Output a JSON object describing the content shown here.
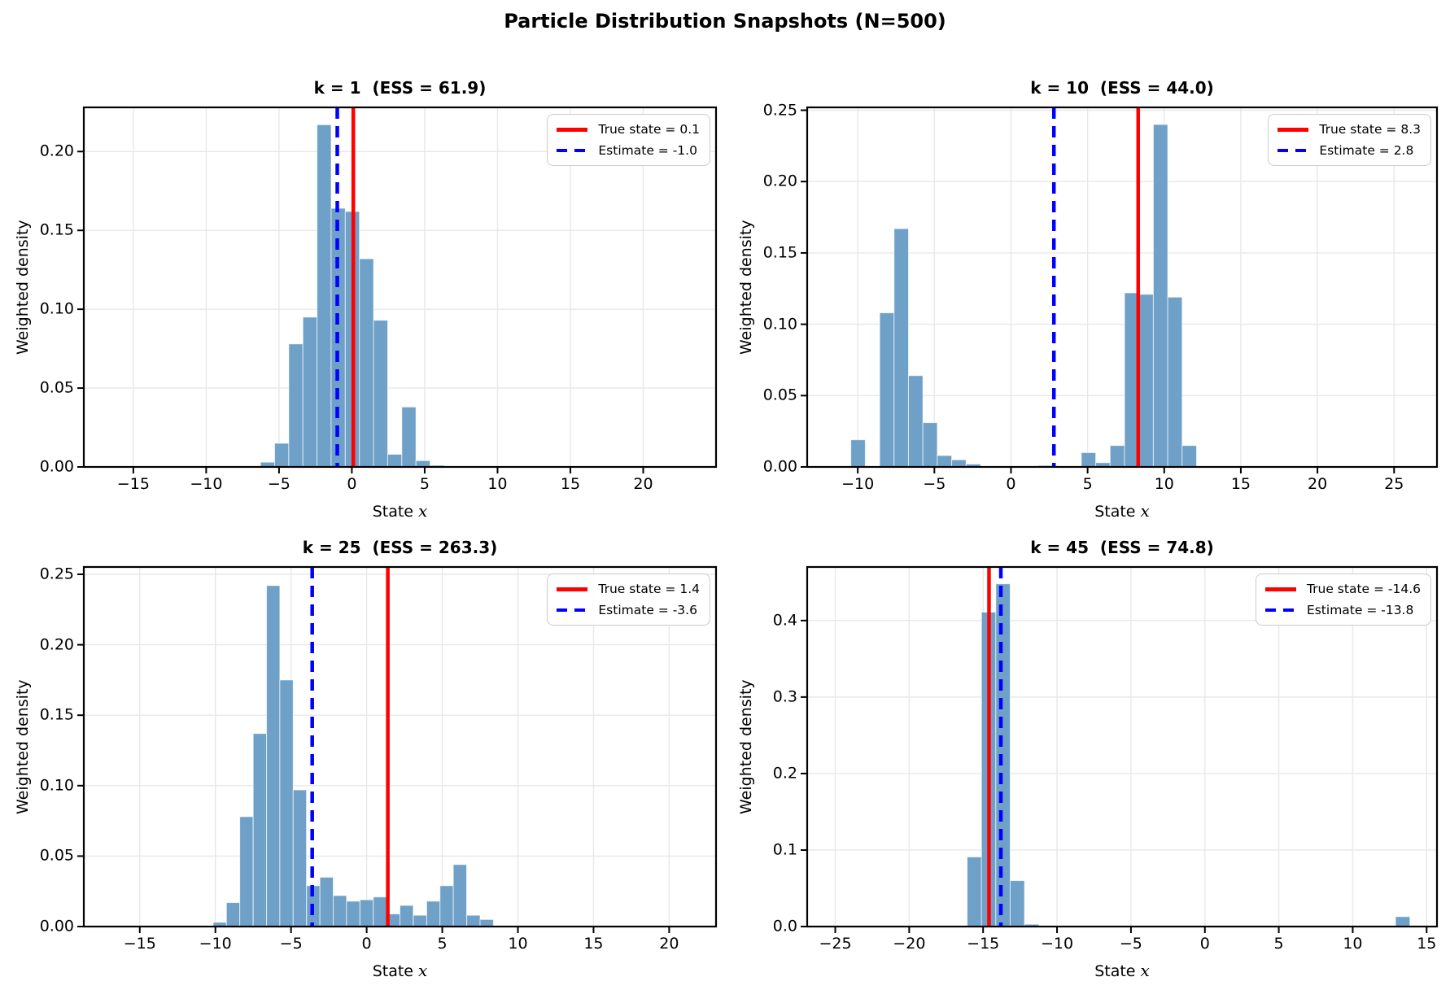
{
  "figure": {
    "title": "Particle Distribution Snapshots (N=500)",
    "particle_count": 500
  },
  "colors": {
    "bar_fill": "#6FA0C8",
    "bar_edge": "#FFFFFF",
    "true_state_line": "#FF0000",
    "estimate_line": "#0000FF",
    "grid": "#E8E8E8",
    "frame": "#000000",
    "legend_border": "#CCCCCC",
    "background": "#FFFFFF"
  },
  "chart_data": [
    {
      "type": "bar",
      "k": 1,
      "ess": 61.9,
      "title": "k = 1  (ESS = 61.9)",
      "xlabel_prefix": "State ",
      "xlabel_var": "x",
      "ylabel": "Weighted density",
      "xlim": [
        -18.4,
        25.0
      ],
      "ylim": [
        0,
        0.228
      ],
      "xticks": [
        -15,
        -10,
        -5,
        0,
        5,
        10,
        15,
        20
      ],
      "xtick_labels": [
        "−15",
        "−10",
        "−5",
        "0",
        "5",
        "10",
        "15",
        "20"
      ],
      "yticks": [
        0,
        0.05,
        0.1,
        0.15,
        0.2
      ],
      "ytick_labels": [
        "0.00",
        "0.05",
        "0.10",
        "0.15",
        "0.20"
      ],
      "bin_width": 0.97,
      "bins": [
        [
          -6.27,
          0.003
        ],
        [
          -5.3,
          0.015
        ],
        [
          -4.33,
          0.078
        ],
        [
          -3.36,
          0.095
        ],
        [
          -2.39,
          0.217
        ],
        [
          -1.42,
          0.164
        ],
        [
          -0.45,
          0.162
        ],
        [
          0.52,
          0.132
        ],
        [
          1.49,
          0.093
        ],
        [
          2.46,
          0.008
        ],
        [
          3.43,
          0.038
        ],
        [
          4.4,
          0.004
        ],
        [
          5.37,
          0.001
        ]
      ],
      "true_state": 0.1,
      "estimate": -1.0,
      "legend": [
        {
          "label": "True state = 0.1",
          "style": "solid"
        },
        {
          "label": "Estimate = -1.0",
          "style": "dashed"
        }
      ]
    },
    {
      "type": "bar",
      "k": 10,
      "ess": 44.0,
      "title": "k = 10  (ESS = 44.0)",
      "xlabel_prefix": "State ",
      "xlabel_var": "x",
      "ylabel": "Weighted density",
      "xlim": [
        -13.3,
        27.8
      ],
      "ylim": [
        0,
        0.252
      ],
      "xticks": [
        -10,
        -5,
        0,
        5,
        10,
        15,
        20,
        25
      ],
      "xtick_labels": [
        "−10",
        "−5",
        "0",
        "5",
        "10",
        "15",
        "20",
        "25"
      ],
      "yticks": [
        0,
        0.05,
        0.1,
        0.15,
        0.2,
        0.25
      ],
      "ytick_labels": [
        "0.00",
        "0.05",
        "0.10",
        "0.15",
        "0.20",
        "0.25"
      ],
      "bin_width": 0.94,
      "bins": [
        [
          -10.45,
          0.019
        ],
        [
          -8.57,
          0.108
        ],
        [
          -7.63,
          0.167
        ],
        [
          -6.69,
          0.064
        ],
        [
          -5.75,
          0.031
        ],
        [
          -4.81,
          0.008
        ],
        [
          -3.87,
          0.005
        ],
        [
          -2.93,
          0.002
        ],
        [
          1.77,
          0.001
        ],
        [
          4.59,
          0.01
        ],
        [
          5.53,
          0.003
        ],
        [
          6.47,
          0.015
        ],
        [
          7.41,
          0.122
        ],
        [
          8.35,
          0.121
        ],
        [
          9.29,
          0.24
        ],
        [
          10.23,
          0.119
        ],
        [
          11.17,
          0.015
        ]
      ],
      "true_state": 8.3,
      "estimate": 2.8,
      "legend": [
        {
          "label": "True state = 8.3",
          "style": "solid"
        },
        {
          "label": "Estimate = 2.8",
          "style": "dashed"
        }
      ]
    },
    {
      "type": "bar",
      "k": 25,
      "ess": 263.3,
      "title": "k = 25  (ESS = 263.3)",
      "xlabel_prefix": "State ",
      "xlabel_var": "x",
      "ylabel": "Weighted density",
      "xlim": [
        -18.7,
        23.1
      ],
      "ylim": [
        0,
        0.2552
      ],
      "xticks": [
        -15,
        -10,
        -5,
        0,
        5,
        10,
        15,
        20
      ],
      "xtick_labels": [
        "−15",
        "−10",
        "−5",
        "0",
        "5",
        "10",
        "15",
        "20"
      ],
      "yticks": [
        0,
        0.05,
        0.1,
        0.15,
        0.2,
        0.25
      ],
      "ytick_labels": [
        "0.00",
        "0.05",
        "0.10",
        "0.15",
        "0.20",
        "0.25"
      ],
      "bin_width": 0.88,
      "bins": [
        [
          -10.15,
          0.003
        ],
        [
          -9.27,
          0.017
        ],
        [
          -8.39,
          0.078
        ],
        [
          -7.5,
          0.137
        ],
        [
          -6.62,
          0.242
        ],
        [
          -5.74,
          0.175
        ],
        [
          -4.86,
          0.097
        ],
        [
          -3.97,
          0.029
        ],
        [
          -3.09,
          0.035
        ],
        [
          -2.21,
          0.022
        ],
        [
          -1.33,
          0.018
        ],
        [
          -0.44,
          0.019
        ],
        [
          0.44,
          0.021
        ],
        [
          1.32,
          0.009
        ],
        [
          2.2,
          0.015
        ],
        [
          3.09,
          0.008
        ],
        [
          3.97,
          0.018
        ],
        [
          4.85,
          0.029
        ],
        [
          5.73,
          0.044
        ],
        [
          6.62,
          0.008
        ],
        [
          7.5,
          0.005
        ]
      ],
      "true_state": 1.4,
      "estimate": -3.6,
      "legend": [
        {
          "label": "True state = 1.4",
          "style": "solid"
        },
        {
          "label": "Estimate = -3.6",
          "style": "dashed"
        }
      ]
    },
    {
      "type": "bar",
      "k": 45,
      "ess": 74.8,
      "title": "k = 45  (ESS = 74.8)",
      "xlabel_prefix": "State ",
      "xlabel_var": "x",
      "ylabel": "Weighted density",
      "xlim": [
        -26.9,
        15.7
      ],
      "ylim": [
        0,
        0.47
      ],
      "xticks": [
        -25,
        -20,
        -15,
        -10,
        -5,
        0,
        5,
        10,
        15
      ],
      "xtick_labels": [
        "−25",
        "−20",
        "−15",
        "−10",
        "−5",
        "0",
        "5",
        "10",
        "15"
      ],
      "yticks": [
        0,
        0.1,
        0.2,
        0.3,
        0.4
      ],
      "ytick_labels": [
        "0.0",
        "0.1",
        "0.2",
        "0.3",
        "0.4"
      ],
      "bin_width": 0.97,
      "bins": [
        [
          -17.05,
          0.001
        ],
        [
          -16.08,
          0.091
        ],
        [
          -15.11,
          0.411
        ],
        [
          -14.14,
          0.448
        ],
        [
          -13.17,
          0.06
        ],
        [
          -12.2,
          0.003
        ],
        [
          12.9,
          0.013
        ]
      ],
      "true_state": -14.6,
      "estimate": -13.8,
      "legend": [
        {
          "label": "True state = -14.6",
          "style": "solid"
        },
        {
          "label": "Estimate = -13.8",
          "style": "dashed"
        }
      ]
    }
  ]
}
